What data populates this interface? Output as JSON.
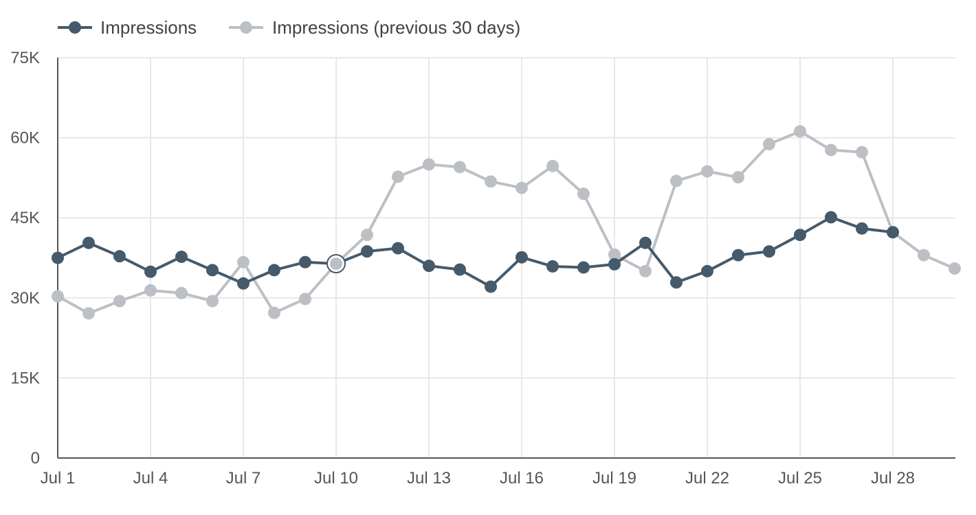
{
  "chart_data": {
    "type": "line",
    "title": "",
    "xlabel": "",
    "ylabel": "",
    "x": [
      "Jul 1",
      "Jul 2",
      "Jul 3",
      "Jul 4",
      "Jul 5",
      "Jul 6",
      "Jul 7",
      "Jul 8",
      "Jul 9",
      "Jul 10",
      "Jul 11",
      "Jul 12",
      "Jul 13",
      "Jul 14",
      "Jul 15",
      "Jul 16",
      "Jul 17",
      "Jul 18",
      "Jul 19",
      "Jul 20",
      "Jul 21",
      "Jul 22",
      "Jul 23",
      "Jul 24",
      "Jul 25",
      "Jul 26",
      "Jul 27",
      "Jul 28",
      "Jul 29",
      "Jul 30"
    ],
    "x_tick_labels": [
      "Jul 1",
      "Jul 4",
      "Jul 7",
      "Jul 10",
      "Jul 13",
      "Jul 16",
      "Jul 19",
      "Jul 22",
      "Jul 25",
      "Jul 28"
    ],
    "y_tick_labels": [
      "0",
      "15K",
      "30K",
      "45K",
      "60K",
      "75K"
    ],
    "ylim": [
      0,
      75000
    ],
    "grid": true,
    "legend_position": "top-left",
    "highlighted_point": {
      "series": "Impressions (previous 30 days)",
      "x": "Jul 10"
    },
    "series": [
      {
        "name": "Impressions",
        "color": "#455a6b",
        "values": [
          37500,
          40300,
          37800,
          34900,
          37700,
          35200,
          32700,
          35200,
          36700,
          36400,
          38700,
          39300,
          36000,
          35300,
          32100,
          37600,
          35900,
          35700,
          36300,
          40300,
          32900,
          35000,
          38000,
          38700,
          41800,
          45100,
          43000,
          42300,
          null,
          null
        ]
      },
      {
        "name": "Impressions (previous 30 days)",
        "color": "#bcc0c4",
        "values": [
          30300,
          27100,
          29400,
          31400,
          30900,
          29400,
          36700,
          27200,
          29800,
          36400,
          41800,
          52700,
          55000,
          54500,
          51800,
          50600,
          54700,
          49500,
          38100,
          35000,
          51900,
          53700,
          52600,
          58800,
          61200,
          57700,
          57300,
          42300,
          38000,
          35500
        ]
      }
    ]
  }
}
